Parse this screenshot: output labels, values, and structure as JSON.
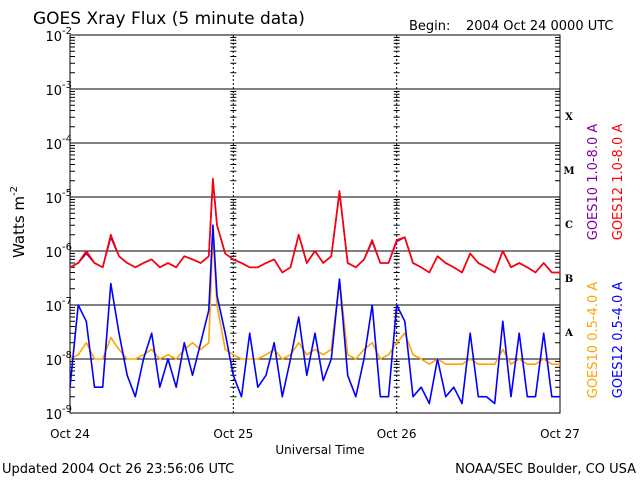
{
  "title": "GOES Xray Flux (5 minute data)",
  "begin_label": "Begin:",
  "begin_value": "2004 Oct 24 0000 UTC",
  "updated": "Updated 2004 Oct 26 23:56:06 UTC",
  "credit": "NOAA/SEC Boulder, CO USA",
  "colors": {
    "goes10_long": "#8000a0",
    "goes12_long": "#ff0000",
    "goes10_short": "#ffa500",
    "goes12_short": "#0000ff"
  },
  "chart_data": {
    "type": "line",
    "title": "GOES Xray Flux (5 minute data)",
    "xlabel": "Universal Time",
    "ylabel": "Watts m",
    "ylabel_sup": "-2",
    "x_ticks": [
      "Oct 24",
      "Oct 25",
      "Oct 26",
      "Oct 27"
    ],
    "x_range_days": [
      0,
      3
    ],
    "y_scale": "log",
    "ylim": [
      1e-09,
      0.01
    ],
    "y_ticks": [
      {
        "base": "10",
        "exp": "-9"
      },
      {
        "base": "10",
        "exp": "-8"
      },
      {
        "base": "10",
        "exp": "-7"
      },
      {
        "base": "10",
        "exp": "-6"
      },
      {
        "base": "10",
        "exp": "-5"
      },
      {
        "base": "10",
        "exp": "-4"
      },
      {
        "base": "10",
        "exp": "-3"
      },
      {
        "base": "10",
        "exp": "-2"
      }
    ],
    "flare_classes": [
      "A",
      "B",
      "C",
      "M",
      "X"
    ],
    "grid": true,
    "legend_placement": "right",
    "series": [
      {
        "name": "GOES10 1.0-8.0 A",
        "color": "#8000a0",
        "x": [
          0,
          0.05,
          0.1,
          0.15,
          0.2,
          0.25,
          0.3,
          0.35,
          0.4,
          0.45,
          0.5,
          0.55,
          0.6,
          0.65,
          0.7,
          0.75,
          0.8,
          0.85,
          0.875,
          0.9,
          0.95,
          1.0,
          1.05,
          1.1,
          1.15,
          1.2,
          1.25,
          1.3,
          1.35,
          1.4,
          1.45,
          1.5,
          1.55,
          1.6,
          1.65,
          1.7,
          1.75,
          1.8,
          1.85,
          1.9,
          1.95,
          2.0,
          2.05,
          2.1,
          2.15,
          2.2,
          2.25,
          2.3,
          2.35,
          2.4,
          2.45,
          2.5,
          2.55,
          2.6,
          2.65,
          2.7,
          2.75,
          2.8,
          2.85,
          2.9,
          2.95,
          3.0
        ],
        "y": [
          5e-07,
          6e-07,
          9e-07,
          6e-07,
          5e-07,
          1.8e-06,
          8e-07,
          6e-07,
          5e-07,
          6e-07,
          7e-07,
          5e-07,
          6e-07,
          5e-07,
          8e-07,
          7e-07,
          6e-07,
          8e-07,
          2e-05,
          3e-06,
          9e-07,
          7e-07,
          6e-07,
          5e-07,
          5e-07,
          6e-07,
          7e-07,
          4e-07,
          5e-07,
          2e-06,
          6e-07,
          1e-06,
          6e-07,
          8e-07,
          1.2e-05,
          6e-07,
          5e-07,
          7e-07,
          1.5e-06,
          6e-07,
          6e-07,
          1.5e-06,
          1.8e-06,
          6e-07,
          5e-07,
          4e-07,
          8e-07,
          6e-07,
          5e-07,
          4e-07,
          9e-07,
          6e-07,
          5e-07,
          4e-07,
          1e-06,
          5e-07,
          6e-07,
          5e-07,
          4e-07,
          6e-07,
          4e-07,
          4e-07
        ]
      },
      {
        "name": "GOES12 1.0-8.0 A",
        "color": "#ff0000",
        "x": [
          0,
          0.05,
          0.1,
          0.15,
          0.2,
          0.25,
          0.3,
          0.35,
          0.4,
          0.45,
          0.5,
          0.55,
          0.6,
          0.65,
          0.7,
          0.75,
          0.8,
          0.85,
          0.875,
          0.9,
          0.95,
          1.0,
          1.05,
          1.1,
          1.15,
          1.2,
          1.25,
          1.3,
          1.35,
          1.4,
          1.45,
          1.5,
          1.55,
          1.6,
          1.65,
          1.7,
          1.75,
          1.8,
          1.85,
          1.9,
          1.95,
          2.0,
          2.05,
          2.1,
          2.15,
          2.2,
          2.25,
          2.3,
          2.35,
          2.4,
          2.45,
          2.5,
          2.55,
          2.6,
          2.65,
          2.7,
          2.75,
          2.8,
          2.85,
          2.9,
          2.95,
          3.0
        ],
        "y": [
          5e-07,
          6e-07,
          1e-06,
          6e-07,
          5e-07,
          2e-06,
          8e-07,
          6e-07,
          5e-07,
          6e-07,
          7e-07,
          5e-07,
          6e-07,
          5e-07,
          8e-07,
          7e-07,
          6e-07,
          8e-07,
          2.2e-05,
          3e-06,
          9e-07,
          7e-07,
          6e-07,
          5e-07,
          5e-07,
          6e-07,
          7e-07,
          4e-07,
          5e-07,
          2e-06,
          6e-07,
          1e-06,
          6e-07,
          8e-07,
          1.3e-05,
          6e-07,
          5e-07,
          7e-07,
          1.6e-06,
          6e-07,
          6e-07,
          1.6e-06,
          1.8e-06,
          6e-07,
          5e-07,
          4e-07,
          8e-07,
          6e-07,
          5e-07,
          4e-07,
          9e-07,
          6e-07,
          5e-07,
          4e-07,
          1e-06,
          5e-07,
          6e-07,
          5e-07,
          4e-07,
          6e-07,
          4e-07,
          4e-07
        ]
      },
      {
        "name": "GOES10 0.5-4.0 A",
        "color": "#ffa500",
        "x": [
          0,
          0.05,
          0.1,
          0.15,
          0.2,
          0.25,
          0.3,
          0.35,
          0.4,
          0.45,
          0.5,
          0.55,
          0.6,
          0.65,
          0.7,
          0.75,
          0.8,
          0.85,
          0.875,
          0.9,
          0.95,
          1.0,
          1.05,
          1.1,
          1.15,
          1.2,
          1.25,
          1.3,
          1.35,
          1.4,
          1.45,
          1.5,
          1.55,
          1.6,
          1.65,
          1.7,
          1.75,
          1.8,
          1.85,
          1.9,
          1.95,
          2.0,
          2.05,
          2.1,
          2.15,
          2.2,
          2.25,
          2.3,
          2.35,
          2.4,
          2.45,
          2.5,
          2.55,
          2.6,
          2.65,
          2.7,
          2.75,
          2.8,
          2.85,
          2.9,
          2.95,
          3.0
        ],
        "y": [
          1e-08,
          1.2e-08,
          2e-08,
          1e-08,
          1e-08,
          2.5e-08,
          1.5e-08,
          1e-08,
          1e-08,
          1.2e-08,
          1.5e-08,
          1e-08,
          1.2e-08,
          1e-08,
          1.5e-08,
          2e-08,
          1.5e-08,
          2e-08,
          2e-06,
          1e-07,
          1.5e-08,
          1.2e-08,
          1e-08,
          1e-08,
          1e-08,
          1.2e-08,
          1.5e-08,
          1e-08,
          1.2e-08,
          2e-08,
          1.2e-08,
          1.5e-08,
          1.2e-08,
          1.5e-08,
          3e-07,
          1.2e-08,
          1e-08,
          1.5e-08,
          2e-08,
          1e-08,
          1.2e-08,
          2e-08,
          3e-08,
          1.2e-08,
          1e-08,
          8e-09,
          1e-08,
          8e-09,
          8e-09,
          8e-09,
          1e-08,
          8e-09,
          8e-09,
          8e-09,
          1.5e-08,
          8e-09,
          1e-08,
          8e-09,
          8e-09,
          1e-08,
          8e-09,
          8e-09
        ]
      },
      {
        "name": "GOES12 0.5-4.0 A",
        "color": "#0000ff",
        "x": [
          0,
          0.05,
          0.1,
          0.15,
          0.2,
          0.25,
          0.3,
          0.35,
          0.4,
          0.45,
          0.5,
          0.55,
          0.6,
          0.65,
          0.7,
          0.75,
          0.8,
          0.85,
          0.875,
          0.9,
          0.95,
          1.0,
          1.05,
          1.1,
          1.15,
          1.2,
          1.25,
          1.3,
          1.35,
          1.4,
          1.45,
          1.5,
          1.55,
          1.6,
          1.65,
          1.7,
          1.75,
          1.8,
          1.85,
          1.9,
          1.95,
          2.0,
          2.05,
          2.1,
          2.15,
          2.2,
          2.25,
          2.3,
          2.35,
          2.4,
          2.45,
          2.5,
          2.55,
          2.6,
          2.65,
          2.7,
          2.75,
          2.8,
          2.85,
          2.9,
          2.95,
          3.0
        ],
        "y": [
          3e-09,
          1e-07,
          5e-08,
          3e-09,
          3e-09,
          2.5e-07,
          3e-08,
          5e-09,
          2e-09,
          1e-08,
          3e-08,
          3e-09,
          1e-08,
          3e-09,
          2e-08,
          5e-09,
          2e-08,
          8e-08,
          3e-06,
          1.5e-07,
          3e-08,
          5e-09,
          2e-09,
          3e-08,
          3e-09,
          5e-09,
          2e-08,
          2e-09,
          1e-08,
          6e-08,
          5e-09,
          3e-08,
          4e-09,
          1e-08,
          3e-07,
          5e-09,
          2e-09,
          1e-08,
          1e-07,
          2e-09,
          2e-09,
          1e-07,
          5e-08,
          2e-09,
          3e-09,
          1.5e-09,
          1e-08,
          2e-09,
          3e-09,
          1.5e-09,
          3e-08,
          2e-09,
          2e-09,
          1.5e-09,
          5e-08,
          2e-09,
          3e-08,
          2e-09,
          2e-09,
          3e-08,
          2e-09,
          2e-09
        ]
      }
    ]
  }
}
